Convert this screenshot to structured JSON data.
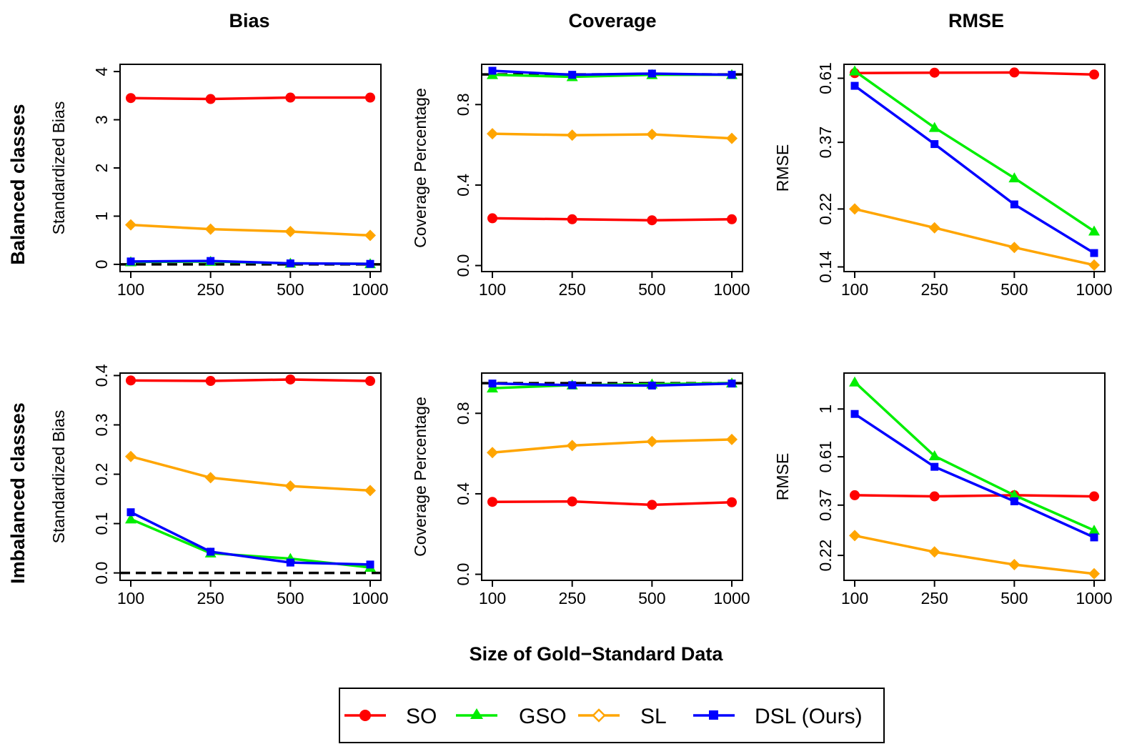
{
  "figure": {
    "column_titles": [
      "Bias",
      "Coverage",
      "RMSE"
    ],
    "row_titles": [
      "Balanced classes",
      "Imbalanced classes"
    ],
    "x_axis_label": "Size of Gold−Standard Data"
  },
  "legend": {
    "items": [
      {
        "label": "SO",
        "color": "#ff0000",
        "marker": "circle"
      },
      {
        "label": "GSO",
        "color": "#00ee00",
        "marker": "triangle"
      },
      {
        "label": "SL",
        "color": "#ffa500",
        "marker": "diamond"
      },
      {
        "label": "DSL (Ours)",
        "color": "#0000ff",
        "marker": "square"
      }
    ]
  },
  "chart_data": [
    {
      "id": "balanced-bias",
      "type": "line",
      "ylabel": "Standardized Bias",
      "ylim": [
        -0.15,
        4.15
      ],
      "yscale": "linear",
      "yticks": [
        0,
        1,
        2,
        3,
        4
      ],
      "ytick_labels": [
        "0",
        "1",
        "2",
        "3",
        "4"
      ],
      "x": [
        "100",
        "250",
        "500",
        "1000"
      ],
      "reference_line": 0,
      "series": [
        {
          "name": "SO",
          "values": [
            3.45,
            3.43,
            3.46,
            3.46
          ]
        },
        {
          "name": "GSO",
          "values": [
            0.05,
            0.06,
            0.02,
            0.01
          ]
        },
        {
          "name": "SL",
          "values": [
            0.82,
            0.73,
            0.68,
            0.6
          ]
        },
        {
          "name": "DSL (Ours)",
          "values": [
            0.06,
            0.07,
            0.02,
            0.01
          ]
        }
      ]
    },
    {
      "id": "balanced-coverage",
      "type": "line",
      "ylabel": "Coverage Percentage",
      "ylim": [
        -0.03,
        1.0
      ],
      "yscale": "linear",
      "yticks": [
        0,
        0.4,
        0.8
      ],
      "ytick_labels": [
        "0.0",
        "0.4",
        "0.8"
      ],
      "x": [
        "100",
        "250",
        "500",
        "1000"
      ],
      "reference_line": 0.95,
      "series": [
        {
          "name": "SO",
          "values": [
            0.235,
            0.23,
            0.225,
            0.23
          ]
        },
        {
          "name": "GSO",
          "values": [
            0.948,
            0.938,
            0.948,
            0.948
          ]
        },
        {
          "name": "SL",
          "values": [
            0.655,
            0.648,
            0.652,
            0.632
          ]
        },
        {
          "name": "DSL (Ours)",
          "values": [
            0.968,
            0.948,
            0.954,
            0.948
          ]
        }
      ]
    },
    {
      "id": "balanced-rmse",
      "type": "line",
      "ylabel": "RMSE",
      "ylim": [
        0.135,
        0.68
      ],
      "yscale": "log",
      "yticks": [
        0.14,
        0.22,
        0.37,
        0.61
      ],
      "ytick_labels": [
        "0.14",
        "0.22",
        "0.37",
        "0.61"
      ],
      "x": [
        "100",
        "250",
        "500",
        "1000"
      ],
      "reference_line": null,
      "series": [
        {
          "name": "SO",
          "values": [
            0.635,
            0.637,
            0.638,
            0.628
          ]
        },
        {
          "name": "GSO",
          "values": [
            0.645,
            0.415,
            0.28,
            0.185
          ]
        },
        {
          "name": "SL",
          "values": [
            0.22,
            0.19,
            0.163,
            0.142
          ]
        },
        {
          "name": "DSL (Ours)",
          "values": [
            0.575,
            0.365,
            0.228,
            0.156
          ]
        }
      ]
    },
    {
      "id": "imbalanced-bias",
      "type": "line",
      "ylabel": "Standardized Bias",
      "ylim": [
        -0.015,
        0.405
      ],
      "yscale": "linear",
      "yticks": [
        0,
        0.1,
        0.2,
        0.3,
        0.4
      ],
      "ytick_labels": [
        "0.0",
        "0.1",
        "0.2",
        "0.3",
        "0.4"
      ],
      "x": [
        "100",
        "250",
        "500",
        "1000"
      ],
      "reference_line": 0,
      "series": [
        {
          "name": "SO",
          "values": [
            0.39,
            0.389,
            0.392,
            0.389
          ]
        },
        {
          "name": "GSO",
          "values": [
            0.109,
            0.04,
            0.029,
            0.011
          ]
        },
        {
          "name": "SL",
          "values": [
            0.236,
            0.193,
            0.176,
            0.167
          ]
        },
        {
          "name": "DSL (Ours)",
          "values": [
            0.123,
            0.043,
            0.021,
            0.017
          ]
        }
      ]
    },
    {
      "id": "imbalanced-coverage",
      "type": "line",
      "ylabel": "Coverage Percentage",
      "ylim": [
        -0.03,
        1.0
      ],
      "yscale": "linear",
      "yticks": [
        0,
        0.4,
        0.8
      ],
      "ytick_labels": [
        "0.0",
        "0.4",
        "0.8"
      ],
      "x": [
        "100",
        "250",
        "500",
        "1000"
      ],
      "reference_line": 0.95,
      "series": [
        {
          "name": "SO",
          "values": [
            0.36,
            0.362,
            0.345,
            0.358
          ]
        },
        {
          "name": "GSO",
          "values": [
            0.925,
            0.94,
            0.945,
            0.95
          ]
        },
        {
          "name": "SL",
          "values": [
            0.605,
            0.64,
            0.66,
            0.67
          ]
        },
        {
          "name": "DSL (Ours)",
          "values": [
            0.948,
            0.94,
            0.938,
            0.948
          ]
        }
      ]
    },
    {
      "id": "imbalanced-rmse",
      "type": "line",
      "ylabel": "RMSE",
      "ylim": [
        0.17,
        1.45
      ],
      "yscale": "log",
      "yticks": [
        0.22,
        0.37,
        0.61,
        1.0
      ],
      "ytick_labels": [
        "0.22",
        "0.37",
        "0.61",
        "1"
      ],
      "x": [
        "100",
        "250",
        "500",
        "1000"
      ],
      "reference_line": null,
      "series": [
        {
          "name": "SO",
          "values": [
            0.41,
            0.405,
            0.41,
            0.405
          ]
        },
        {
          "name": "GSO",
          "values": [
            1.32,
            0.615,
            0.41,
            0.285
          ]
        },
        {
          "name": "SL",
          "values": [
            0.27,
            0.228,
            0.2,
            0.182
          ]
        },
        {
          "name": "DSL (Ours)",
          "values": [
            0.95,
            0.55,
            0.385,
            0.265
          ]
        }
      ]
    }
  ]
}
